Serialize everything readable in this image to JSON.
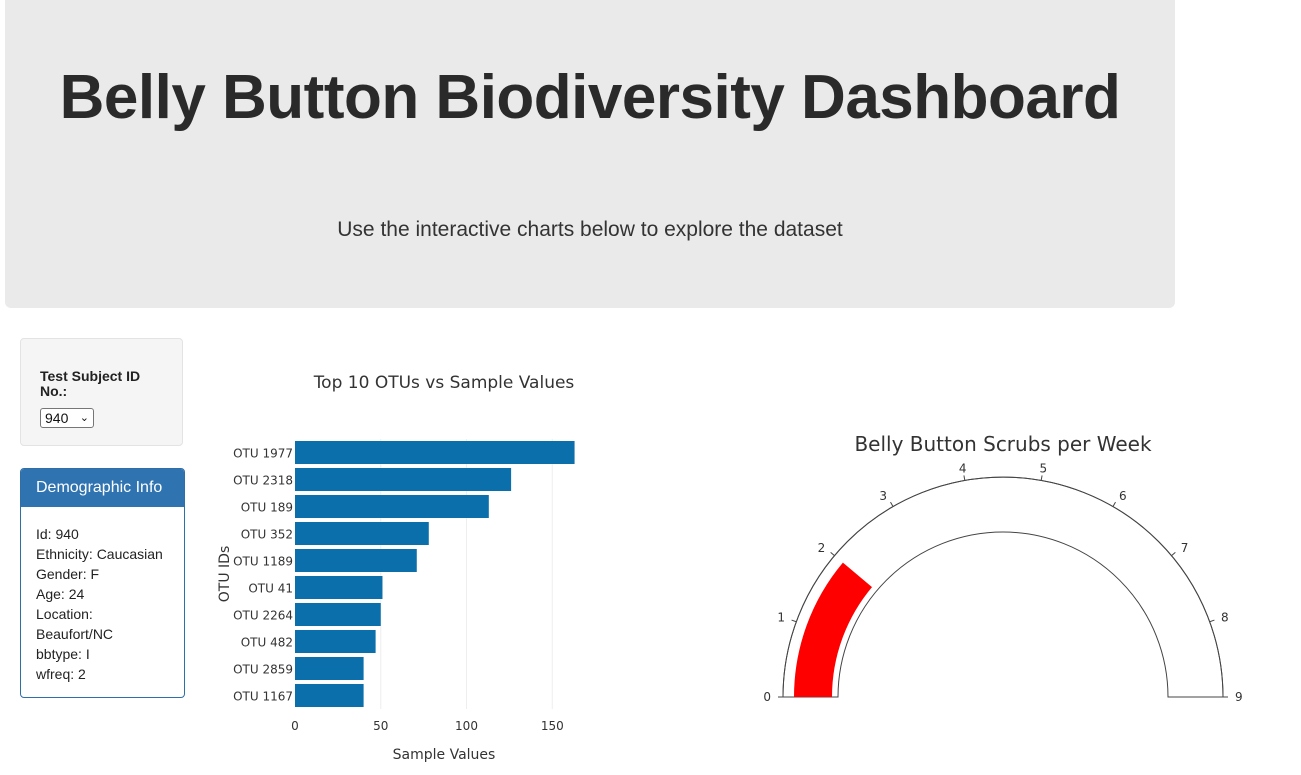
{
  "header": {
    "title": "Belly Button Biodiversity Dashboard",
    "subtitle": "Use the interactive charts below to explore the dataset"
  },
  "selector": {
    "label": "Test Subject ID No.:",
    "selected": "940"
  },
  "demographics": {
    "heading": "Demographic Info",
    "lines": [
      "Id: 940",
      "Ethnicity: Caucasian",
      "Gender: F",
      "Age: 24",
      "Location:",
      "Beaufort/NC",
      "bbtype: I",
      "wfreq: 2"
    ]
  },
  "colors": {
    "bar": "#0b6fab",
    "gauge_fill": "#ff0000"
  },
  "chart_data": [
    {
      "type": "bar",
      "orientation": "horizontal",
      "title": "Top 10 OTUs vs Sample Values",
      "xlabel": "Sample Values",
      "ylabel": "OTU IDs",
      "categories": [
        "OTU 1977",
        "OTU 2318",
        "OTU 189",
        "OTU 352",
        "OTU 1189",
        "OTU 41",
        "OTU 2264",
        "OTU 482",
        "OTU 2859",
        "OTU 1167"
      ],
      "values": [
        163,
        126,
        113,
        78,
        71,
        51,
        50,
        47,
        40,
        40
      ],
      "xlim": [
        0,
        165
      ],
      "xticks": [
        0,
        50,
        100,
        150
      ],
      "grid": true
    },
    {
      "type": "gauge",
      "title": "Belly Button Scrubs per Week",
      "range": [
        0,
        9
      ],
      "ticks": [
        0,
        1,
        2,
        3,
        4,
        5,
        6,
        7,
        8,
        9
      ],
      "value": 2
    }
  ]
}
